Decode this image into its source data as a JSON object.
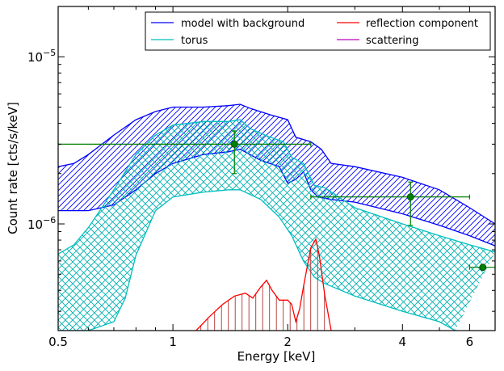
{
  "chart_data": {
    "type": "line",
    "title": "",
    "xlabel": "Energy [keV]",
    "ylabel": "Count rate [cts/s/keV]",
    "xscale": "log",
    "yscale": "log",
    "xlim": [
      0.5,
      7.0
    ],
    "ylim": [
      2.3e-07,
      2e-05
    ],
    "xticks": [
      {
        "value": 0.5,
        "label": "0.5"
      },
      {
        "value": 1,
        "label": "1"
      },
      {
        "value": 2,
        "label": "2"
      },
      {
        "value": 4,
        "label": "4"
      },
      {
        "value": 6,
        "label": "6"
      }
    ],
    "yticks": [
      {
        "value": 1e-06,
        "base": "10",
        "exp": "−6"
      },
      {
        "value": 1e-05,
        "base": "10",
        "exp": "−5"
      }
    ],
    "legend": {
      "placement": "top-right",
      "columns": 2,
      "entries": [
        {
          "label": "model with background",
          "color": "#0000ff"
        },
        {
          "label": "reflection component",
          "color": "#ff0000"
        },
        {
          "label": "torus",
          "color": "#00bfbf"
        },
        {
          "label": "scattering",
          "color": "#bf00bf"
        }
      ]
    },
    "series": [
      {
        "name": "model with background",
        "color": "#0000ff",
        "hatch": "diagonal",
        "upper": [
          [
            0.5,
            2.2e-06
          ],
          [
            0.55,
            2.3e-06
          ],
          [
            0.6,
            2.6e-06
          ],
          [
            0.7,
            3.4e-06
          ],
          [
            0.8,
            4.2e-06
          ],
          [
            0.9,
            4.7e-06
          ],
          [
            1.0,
            5e-06
          ],
          [
            1.2,
            5e-06
          ],
          [
            1.4,
            5.1e-06
          ],
          [
            1.5,
            5.2e-06
          ],
          [
            1.6,
            4.9e-06
          ],
          [
            1.8,
            4.5e-06
          ],
          [
            2.0,
            4.2e-06
          ],
          [
            2.1,
            3.3e-06
          ],
          [
            2.2,
            3.2e-06
          ],
          [
            2.3,
            3.1e-06
          ],
          [
            2.45,
            2.8e-06
          ],
          [
            2.6,
            2.3e-06
          ],
          [
            3.0,
            2.2e-06
          ],
          [
            4.0,
            1.9e-06
          ],
          [
            5.0,
            1.6e-06
          ],
          [
            6.0,
            1.25e-06
          ],
          [
            7.0,
            1e-06
          ]
        ],
        "lower": [
          [
            0.5,
            1.2e-06
          ],
          [
            0.6,
            1.2e-06
          ],
          [
            0.7,
            1.3e-06
          ],
          [
            0.8,
            1.6e-06
          ],
          [
            0.9,
            2e-06
          ],
          [
            1.0,
            2.3e-06
          ],
          [
            1.2,
            2.6e-06
          ],
          [
            1.4,
            2.7e-06
          ],
          [
            1.5,
            2.8e-06
          ],
          [
            1.7,
            2.4e-06
          ],
          [
            1.9,
            2.2e-06
          ],
          [
            2.0,
            1.75e-06
          ],
          [
            2.1,
            1.85e-06
          ],
          [
            2.2,
            2.05e-06
          ],
          [
            2.3,
            1.6e-06
          ],
          [
            2.4,
            1.45e-06
          ],
          [
            2.6,
            1.4e-06
          ],
          [
            3.0,
            1.35e-06
          ],
          [
            4.0,
            1.15e-06
          ],
          [
            5.0,
            9.8e-07
          ],
          [
            6.0,
            8.5e-07
          ],
          [
            7.0,
            7.4e-07
          ]
        ]
      },
      {
        "name": "torus",
        "color": "#00bfbf",
        "hatch": "cross",
        "upper": [
          [
            0.5,
            6.6e-07
          ],
          [
            0.55,
            7.5e-07
          ],
          [
            0.6,
            9.5e-07
          ],
          [
            0.7,
            1.6e-06
          ],
          [
            0.8,
            2.6e-06
          ],
          [
            0.9,
            3.4e-06
          ],
          [
            1.0,
            3.9e-06
          ],
          [
            1.2,
            4.1e-06
          ],
          [
            1.4,
            4.1e-06
          ],
          [
            1.5,
            4.2e-06
          ],
          [
            1.6,
            3.7e-06
          ],
          [
            1.8,
            3.3e-06
          ],
          [
            1.95,
            3.1e-06
          ],
          [
            2.05,
            2.5e-06
          ],
          [
            2.2,
            2.3e-06
          ],
          [
            2.35,
            1.7e-06
          ],
          [
            2.5,
            1.65e-06
          ],
          [
            3.0,
            1.25e-06
          ],
          [
            4.0,
            1e-06
          ],
          [
            5.0,
            8.5e-07
          ],
          [
            6.0,
            7.5e-07
          ],
          [
            7.0,
            6.8e-07
          ]
        ],
        "lower": [
          [
            0.5,
            2.3e-07
          ],
          [
            0.6,
            2.3e-07
          ],
          [
            0.7,
            2.6e-07
          ],
          [
            0.75,
            3.6e-07
          ],
          [
            0.8,
            6.5e-07
          ],
          [
            0.9,
            1.2e-06
          ],
          [
            1.0,
            1.45e-06
          ],
          [
            1.2,
            1.55e-06
          ],
          [
            1.4,
            1.6e-06
          ],
          [
            1.5,
            1.6e-06
          ],
          [
            1.7,
            1.4e-06
          ],
          [
            1.9,
            1.1e-06
          ],
          [
            2.05,
            8.5e-07
          ],
          [
            2.2,
            6e-07
          ],
          [
            2.35,
            4.8e-07
          ],
          [
            2.5,
            4.4e-07
          ],
          [
            3.0,
            3.7e-07
          ],
          [
            4.0,
            3e-07
          ],
          [
            5.0,
            2.6e-07
          ],
          [
            5.5,
            2.3e-07
          ]
        ]
      },
      {
        "name": "reflection component",
        "color": "#ff0000",
        "hatch": "vertical",
        "curve": [
          [
            1.15,
            2.3e-07
          ],
          [
            1.25,
            2.8e-07
          ],
          [
            1.35,
            3.3e-07
          ],
          [
            1.45,
            3.7e-07
          ],
          [
            1.55,
            3.85e-07
          ],
          [
            1.62,
            3.6e-07
          ],
          [
            1.7,
            4.2e-07
          ],
          [
            1.76,
            4.6e-07
          ],
          [
            1.82,
            4e-07
          ],
          [
            1.9,
            3.5e-07
          ],
          [
            2.0,
            3.5e-07
          ],
          [
            2.05,
            3.3e-07
          ],
          [
            2.1,
            2.6e-07
          ],
          [
            2.15,
            3.1e-07
          ],
          [
            2.2,
            4.2e-07
          ],
          [
            2.3,
            7.2e-07
          ],
          [
            2.37,
            8.1e-07
          ],
          [
            2.42,
            6.5e-07
          ],
          [
            2.5,
            3.8e-07
          ],
          [
            2.6,
            2.3e-07
          ]
        ]
      },
      {
        "name": "scattering",
        "color": "#bf00bf",
        "points": []
      }
    ],
    "data_points": {
      "color": "#008000",
      "points": [
        {
          "x": 1.45,
          "y": 3e-06,
          "xerr": [
            0.5,
            2.3
          ],
          "yerr": [
            2e-06,
            3.6e-06
          ]
        },
        {
          "x": 4.2,
          "y": 1.45e-06,
          "xerr": [
            2.3,
            6.0
          ],
          "yerr": [
            9.8e-07,
            1.78e-06
          ]
        },
        {
          "x": 6.5,
          "y": 5.5e-07,
          "xerr": [
            6.0,
            7.0
          ],
          "yerr": [
            5.5e-07,
            5.5e-07
          ]
        }
      ]
    },
    "grid": false
  }
}
